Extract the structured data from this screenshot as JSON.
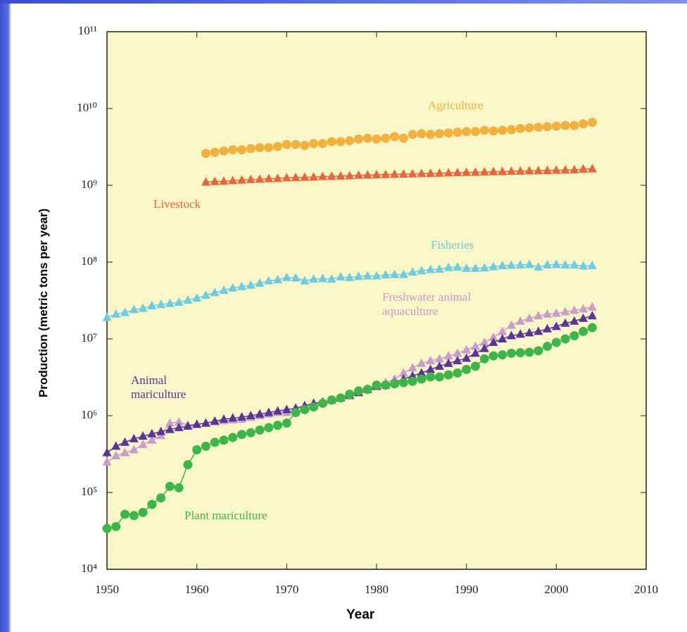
{
  "chart_data": {
    "type": "scatter",
    "xlabel": "Year",
    "ylabel": "Production (metric tons per year)",
    "log_y": true,
    "xlim": [
      1950,
      2010
    ],
    "xticks": [
      1950,
      1960,
      1970,
      1980,
      1990,
      2000,
      2010
    ],
    "ylim": [
      10000.0,
      100000000000.0
    ],
    "yticks": [
      {
        "value": 10000.0,
        "label": "10⁴"
      },
      {
        "value": 100000.0,
        "label": "10⁵"
      },
      {
        "value": 1000000.0,
        "label": "10⁶"
      },
      {
        "value": 10000000.0,
        "label": "10⁷"
      },
      {
        "value": 100000000.0,
        "label": "10⁸"
      },
      {
        "value": 1000000000.0,
        "label": "10⁹"
      },
      {
        "value": 10000000000.0,
        "label": "10¹⁰"
      },
      {
        "value": 100000000000.0,
        "label": "10¹¹"
      }
    ],
    "x": [
      1950,
      1951,
      1952,
      1953,
      1954,
      1955,
      1956,
      1957,
      1958,
      1959,
      1960,
      1961,
      1962,
      1963,
      1964,
      1965,
      1966,
      1967,
      1968,
      1969,
      1970,
      1971,
      1972,
      1973,
      1974,
      1975,
      1976,
      1977,
      1978,
      1979,
      1980,
      1981,
      1982,
      1983,
      1984,
      1985,
      1986,
      1987,
      1988,
      1989,
      1990,
      1991,
      1992,
      1993,
      1994,
      1995,
      1996,
      1997,
      1998,
      1999,
      2000,
      2001,
      2002,
      2003,
      2004
    ],
    "series": [
      {
        "name": "Agriculture",
        "color": "#f2b13c",
        "marker": "circle",
        "values": [
          null,
          null,
          null,
          null,
          null,
          null,
          null,
          null,
          null,
          null,
          null,
          2600000000.0,
          2700000000.0,
          2800000000.0,
          2900000000.0,
          2900000000.0,
          3000000000.0,
          3100000000.0,
          3100000000.0,
          3200000000.0,
          3400000000.0,
          3400000000.0,
          3300000000.0,
          3500000000.0,
          3500000000.0,
          3700000000.0,
          3700000000.0,
          3800000000.0,
          4000000000.0,
          4100000000.0,
          4000000000.0,
          4100000000.0,
          4300000000.0,
          4100000000.0,
          4600000000.0,
          4700000000.0,
          4600000000.0,
          4700000000.0,
          4800000000.0,
          4900000000.0,
          5000000000.0,
          5000000000.0,
          5200000000.0,
          5100000000.0,
          5200000000.0,
          5300000000.0,
          5500000000.0,
          5600000000.0,
          5700000000.0,
          5800000000.0,
          5900000000.0,
          6000000000.0,
          6000000000.0,
          6300000000.0,
          6600000000.0
        ]
      },
      {
        "name": "Livestock",
        "color": "#e8663a",
        "marker": "triangle",
        "values": [
          null,
          null,
          null,
          null,
          null,
          null,
          null,
          null,
          null,
          null,
          null,
          1100000000.0,
          1120000000.0,
          1130000000.0,
          1150000000.0,
          1170000000.0,
          1190000000.0,
          1200000000.0,
          1220000000.0,
          1230000000.0,
          1250000000.0,
          1260000000.0,
          1270000000.0,
          1280000000.0,
          1300000000.0,
          1310000000.0,
          1320000000.0,
          1330000000.0,
          1350000000.0,
          1360000000.0,
          1370000000.0,
          1380000000.0,
          1390000000.0,
          1400000000.0,
          1410000000.0,
          1420000000.0,
          1430000000.0,
          1440000000.0,
          1450000000.0,
          1460000000.0,
          1470000000.0,
          1480000000.0,
          1490000000.0,
          1500000000.0,
          1510000000.0,
          1520000000.0,
          1530000000.0,
          1540000000.0,
          1550000000.0,
          1560000000.0,
          1570000000.0,
          1580000000.0,
          1590000000.0,
          1620000000.0,
          1640000000.0
        ]
      },
      {
        "name": "Fisheries",
        "color": "#6ccde2",
        "marker": "triangle",
        "values": [
          19000000.0,
          21000000.0,
          22000000.0,
          24000000.0,
          25000000.0,
          27000000.0,
          28000000.0,
          29000000.0,
          30000000.0,
          32000000.0,
          34000000.0,
          37000000.0,
          40000000.0,
          43000000.0,
          46000000.0,
          48000000.0,
          50000000.0,
          53000000.0,
          57000000.0,
          59000000.0,
          63000000.0,
          62000000.0,
          57000000.0,
          60000000.0,
          61000000.0,
          60000000.0,
          64000000.0,
          63000000.0,
          65000000.0,
          66000000.0,
          66000000.0,
          68000000.0,
          69000000.0,
          69000000.0,
          74000000.0,
          77000000.0,
          80000000.0,
          81000000.0,
          85000000.0,
          86000000.0,
          83000000.0,
          83000000.0,
          84000000.0,
          87000000.0,
          90000000.0,
          91000000.0,
          92000000.0,
          93000000.0,
          86000000.0,
          92000000.0,
          93000000.0,
          92000000.0,
          92000000.0,
          89000000.0,
          90000000.0
        ]
      },
      {
        "name": "Freshwater animal aquaculture",
        "color": "#c99ccb",
        "marker": "triangle",
        "values": [
          250000.0,
          300000.0,
          330000.0,
          360000.0,
          420000.0,
          480000.0,
          550000.0,
          800000.0,
          830000.0,
          750000.0,
          780000.0,
          800000.0,
          830000.0,
          860000.0,
          880000.0,
          900000.0,
          950000.0,
          1000000.0,
          1050000.0,
          1100000.0,
          1100000.0,
          1200000.0,
          1300000.0,
          1400000.0,
          1500000.0,
          1600000.0,
          1700000.0,
          1800000.0,
          2000000.0,
          2200000.0,
          2500000.0,
          2700000.0,
          3000000.0,
          3600000.0,
          4200000.0,
          4800000.0,
          5200000.0,
          5500000.0,
          6000000.0,
          6500000.0,
          7200000.0,
          8000000.0,
          9000000.0,
          10500000.0,
          12500000.0,
          15000000.0,
          17000000.0,
          18500000.0,
          20000000.0,
          21000000.0,
          21500000.0,
          22500000.0,
          23500000.0,
          24500000.0,
          26000000.0
        ]
      },
      {
        "name": "Animal mariculture",
        "color": "#5a3597",
        "marker": "triangle",
        "values": [
          330000.0,
          400000.0,
          450000.0,
          500000.0,
          540000.0,
          580000.0,
          620000.0,
          660000.0,
          700000.0,
          730000.0,
          770000.0,
          800000.0,
          850000.0,
          900000.0,
          930000.0,
          960000.0,
          1000000.0,
          1050000.0,
          1100000.0,
          1150000.0,
          1200000.0,
          1250000.0,
          1350000.0,
          1450000.0,
          1500000.0,
          1600000.0,
          1700000.0,
          1850000.0,
          2000000.0,
          2200000.0,
          2400000.0,
          2500000.0,
          2700000.0,
          3000000.0,
          3300000.0,
          3600000.0,
          4000000.0,
          4400000.0,
          4800000.0,
          5200000.0,
          5600000.0,
          6500000.0,
          7500000.0,
          9000000.0,
          10000000.0,
          11000000.0,
          11500000.0,
          12000000.0,
          12500000.0,
          13500000.0,
          14500000.0,
          16000000.0,
          17000000.0,
          18500000.0,
          20000000.0
        ]
      },
      {
        "name": "Plant mariculture",
        "color": "#3db649",
        "marker": "circle",
        "values": [
          34000.0,
          36000.0,
          52000.0,
          50000.0,
          55000.0,
          70000.0,
          85000.0,
          120000.0,
          115000.0,
          230000.0,
          360000.0,
          400000.0,
          450000.0,
          480000.0,
          520000.0,
          570000.0,
          600000.0,
          650000.0,
          700000.0,
          750000.0,
          800000.0,
          1100000.0,
          1200000.0,
          1300000.0,
          1450000.0,
          1600000.0,
          1700000.0,
          1900000.0,
          2100000.0,
          2200000.0,
          2500000.0,
          2500000.0,
          2600000.0,
          2700000.0,
          2800000.0,
          3000000.0,
          3200000.0,
          3200000.0,
          3400000.0,
          3600000.0,
          4000000.0,
          4400000.0,
          5500000.0,
          6000000.0,
          6200000.0,
          6500000.0,
          6600000.0,
          6700000.0,
          7000000.0,
          8000000.0,
          9000000.0,
          10000000.0,
          11000000.0,
          12500000.0,
          14000000.0
        ]
      }
    ]
  }
}
